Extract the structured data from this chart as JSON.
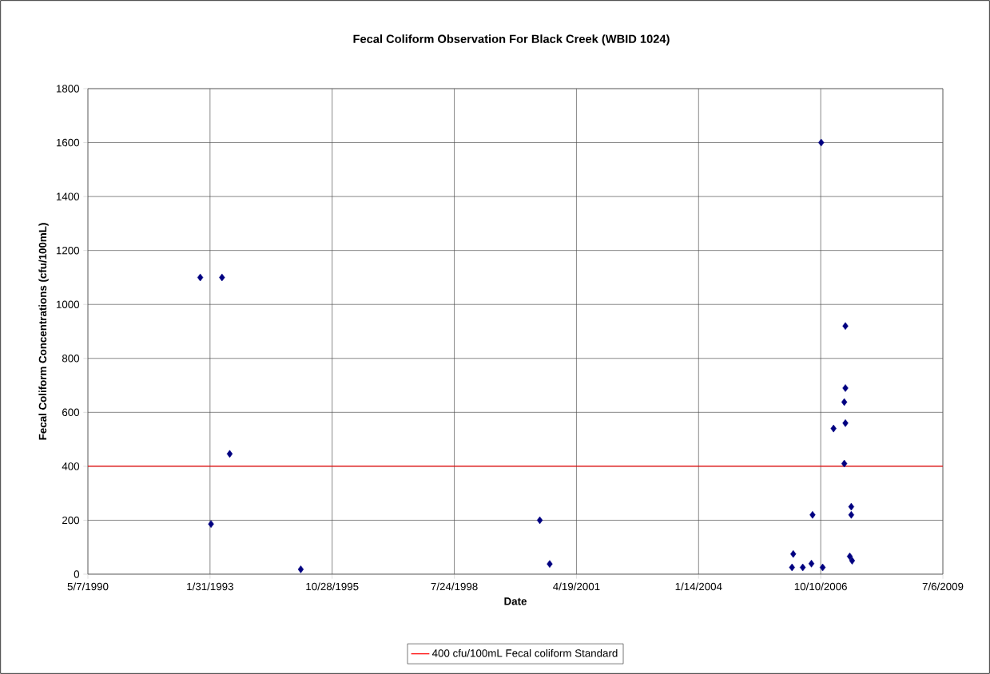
{
  "chart_data": {
    "type": "scatter",
    "title": "Fecal Coliform  Observation For Black Creek (WBID 1024)",
    "xlabel": "Date",
    "ylabel": "Fecal Coliform Concentrations (cfu/100mL)",
    "x": [
      "1992-11-12",
      "1993-02-08",
      "1993-05-09",
      "1993-07-11",
      "1995-02-13",
      "2000-06-23",
      "2000-09-12",
      "2006-02-17",
      "2006-02-27",
      "2006-05-16",
      "2006-07-26",
      "2006-08-04",
      "2006-10-14",
      "2006-10-26",
      "2007-01-23",
      "2007-04-30",
      "2007-04-30",
      "2007-04-21",
      "2007-04-30",
      "2007-04-21",
      "2007-06-05",
      "2007-06-17",
      "2007-06-17",
      "2007-06-24"
    ],
    "values": [
      1100,
      186,
      1100,
      446,
      18,
      200,
      38,
      25,
      75,
      25,
      39,
      220,
      1600,
      25,
      540,
      920,
      690,
      638,
      560,
      410,
      66,
      250,
      220,
      50
    ],
    "color": "#000080",
    "marker": "diamond",
    "xlim": [
      "1990-05-07",
      "2009-07-06"
    ],
    "xticks": [
      {
        "value": "1990-05-07",
        "label": "5/7/1990"
      },
      {
        "value": "1993-01-31",
        "label": "1/31/1993"
      },
      {
        "value": "1995-10-28",
        "label": "10/28/1995"
      },
      {
        "value": "1998-07-24",
        "label": "7/24/1998"
      },
      {
        "value": "2001-04-19",
        "label": "4/19/2001"
      },
      {
        "value": "2004-01-14",
        "label": "1/14/2004"
      },
      {
        "value": "2006-10-10",
        "label": "10/10/2006"
      },
      {
        "value": "2009-07-06",
        "label": "7/6/2009"
      }
    ],
    "ylim": [
      0,
      1800
    ],
    "yticks": [
      0,
      200,
      400,
      600,
      800,
      1000,
      1200,
      1400,
      1600,
      1800
    ],
    "ref_lines": [
      {
        "axis": "y",
        "value": 400,
        "label": "400 cfu/100mL Fecal coliform Standard",
        "color": "#ff0000"
      }
    ],
    "grid": true,
    "legend": "bottom"
  }
}
